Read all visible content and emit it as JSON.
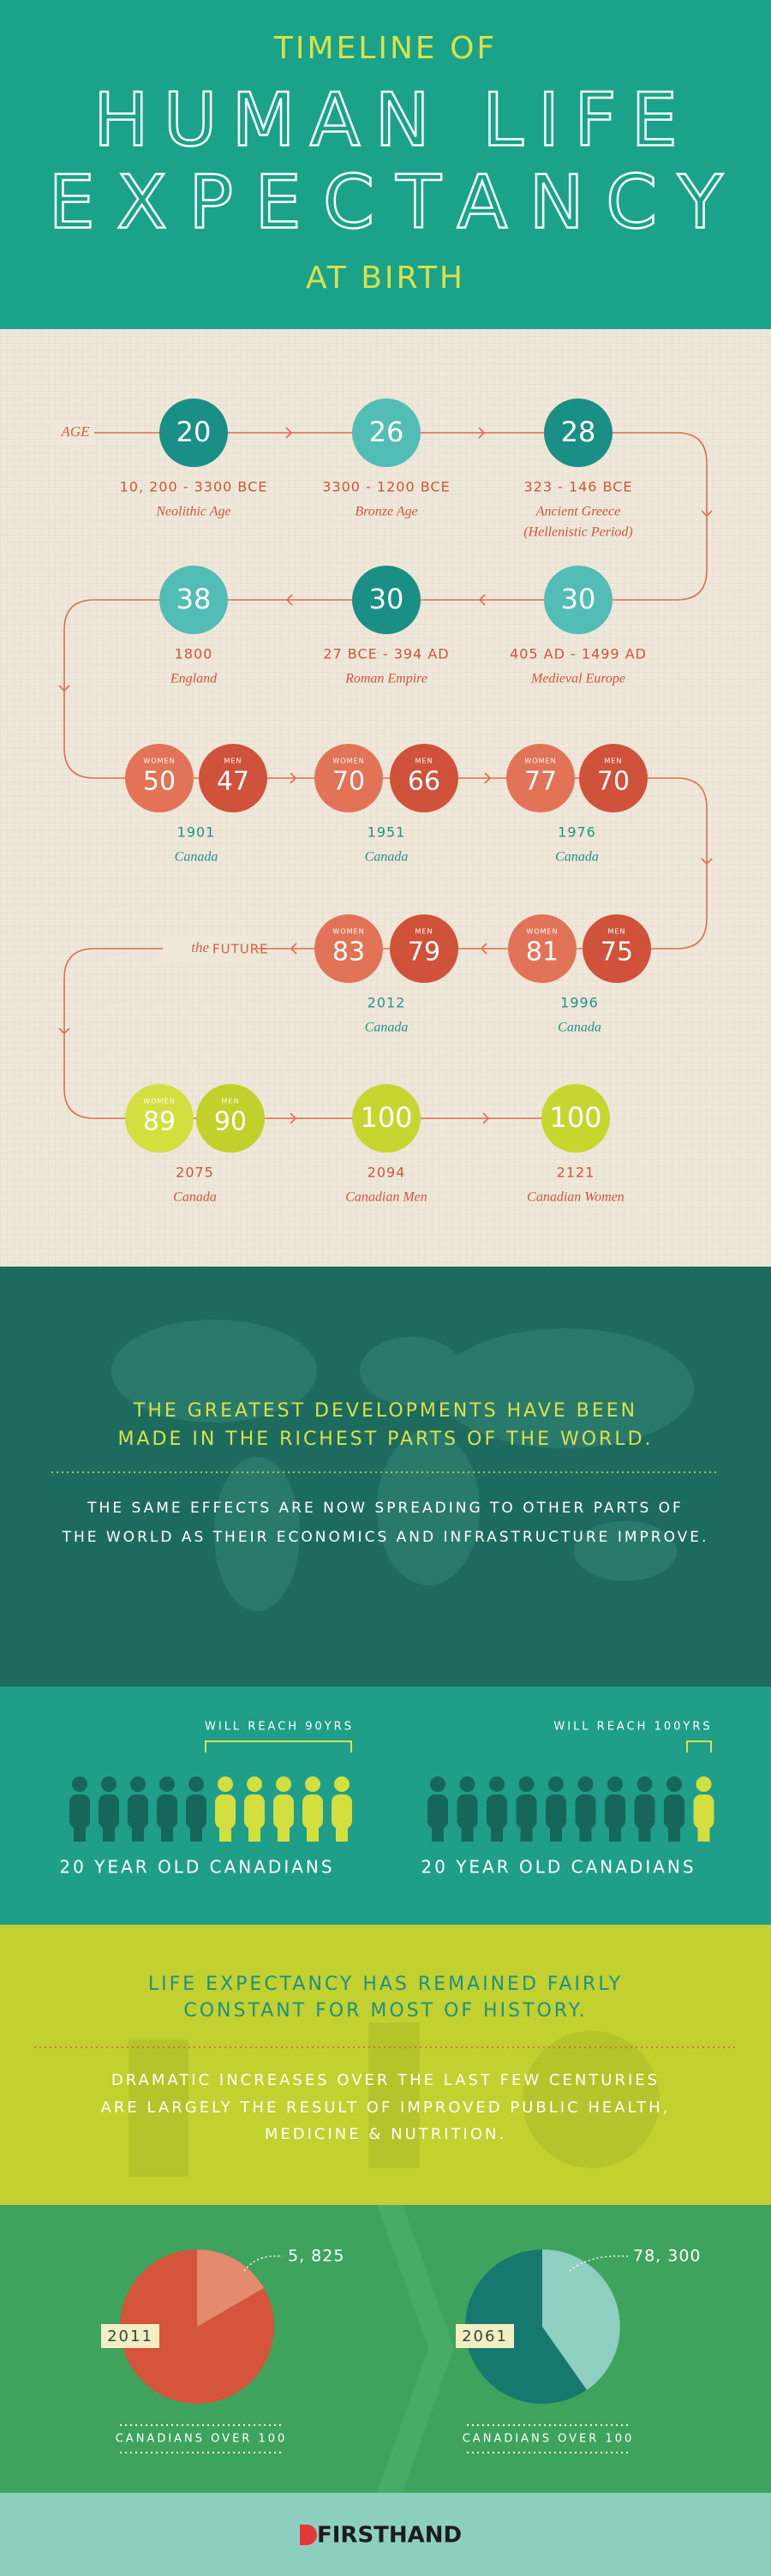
{
  "header": {
    "kicker": "TIMELINE OF",
    "title": [
      "HUMAN LIFE",
      "EXPECTANCY"
    ],
    "subtitle": "AT BIRTH"
  },
  "timeline": {
    "start_label": "AGE",
    "future_label": {
      "prefix": "the",
      "text": "FUTURE"
    },
    "entries": [
      {
        "ages": [
          {
            "value": 20
          }
        ],
        "date": "10, 200 - 3300 BCE",
        "place": [
          "Neolithic Age"
        ]
      },
      {
        "ages": [
          {
            "value": 26
          }
        ],
        "date": "3300 - 1200 BCE",
        "place": [
          "Bronze Age"
        ]
      },
      {
        "ages": [
          {
            "value": 28
          }
        ],
        "date": "323 - 146 BCE",
        "place": [
          "Ancient Greece",
          "(Hellenistic Period)"
        ]
      },
      {
        "ages": [
          {
            "value": 30
          }
        ],
        "date": "405 AD - 1499 AD",
        "place": [
          "Medieval Europe"
        ]
      },
      {
        "ages": [
          {
            "value": 30
          }
        ],
        "date": "27 BCE - 394 AD",
        "place": [
          "Roman Empire"
        ]
      },
      {
        "ages": [
          {
            "value": 38
          }
        ],
        "date": "1800",
        "place": [
          "England"
        ]
      },
      {
        "ages": [
          {
            "label": "WOMEN",
            "value": 50
          },
          {
            "label": "MEN",
            "value": 47
          }
        ],
        "date": "1901",
        "place": [
          "Canada"
        ]
      },
      {
        "ages": [
          {
            "label": "WOMEN",
            "value": 70
          },
          {
            "label": "MEN",
            "value": 66
          }
        ],
        "date": "1951",
        "place": [
          "Canada"
        ]
      },
      {
        "ages": [
          {
            "label": "WOMEN",
            "value": 77
          },
          {
            "label": "MEN",
            "value": 70
          }
        ],
        "date": "1976",
        "place": [
          "Canada"
        ]
      },
      {
        "ages": [
          {
            "label": "WOMEN",
            "value": 81
          },
          {
            "label": "MEN",
            "value": 75
          }
        ],
        "date": "1996",
        "place": [
          "Canada"
        ]
      },
      {
        "ages": [
          {
            "label": "WOMEN",
            "value": 83
          },
          {
            "label": "MEN",
            "value": 79
          }
        ],
        "date": "2012",
        "place": [
          "Canada"
        ]
      },
      {
        "ages": [
          {
            "label": "WOMEN",
            "value": 89
          },
          {
            "label": "MEN",
            "value": 90
          }
        ],
        "date": "2075",
        "place": [
          "Canada"
        ]
      },
      {
        "ages": [
          {
            "value": 100
          }
        ],
        "date": "2094",
        "place": [
          "Canadian Men"
        ]
      },
      {
        "ages": [
          {
            "value": 100
          }
        ],
        "date": "2121",
        "place": [
          "Canadian Women"
        ]
      }
    ]
  },
  "world": {
    "headline": [
      "THE GREATEST DEVELOPMENTS HAVE BEEN",
      "MADE IN THE RICHEST PARTS OF THE WORLD."
    ],
    "body": [
      "THE SAME EFFECTS ARE NOW SPREADING TO OTHER PARTS OF",
      "THE WORLD AS THEIR ECONOMICS AND INFRASTRUCTURE IMPROVE."
    ]
  },
  "forecast": {
    "groups": [
      {
        "note": "WILL REACH 90YRS",
        "caption": "20 YEAR OLD CANADIANS"
      },
      {
        "note": "WILL REACH 100YRS",
        "caption": "20 YEAR OLD CANADIANS"
      }
    ]
  },
  "history": {
    "headline": [
      "LIFE EXPECTANCY HAS REMAINED FAIRLY",
      "CONSTANT FOR MOST OF HISTORY."
    ],
    "body": [
      "DRAMATIC INCREASES OVER THE LAST FEW CENTURIES",
      "ARE LARGELY THE RESULT OF IMPROVED PUBLIC HEALTH,",
      "MEDICINE & NUTRITION."
    ]
  },
  "centenarians": {
    "items": [
      {
        "year": "2011",
        "count": "5, 825"
      },
      {
        "year": "2061",
        "count": "78, 300"
      }
    ],
    "caption": "CANADIANS OVER 100"
  },
  "footer": {
    "brand": "FIRSTHAND"
  }
}
